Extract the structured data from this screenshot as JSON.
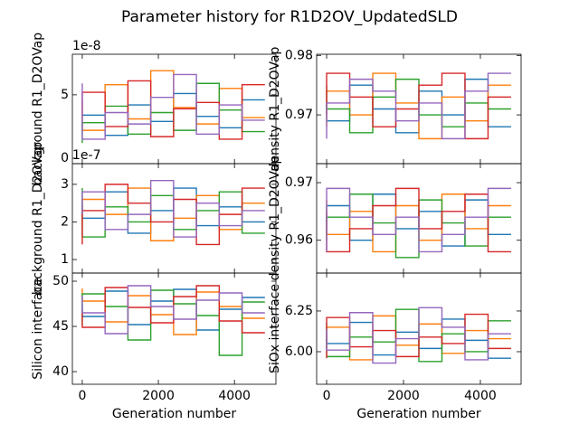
{
  "title": "Parameter history for R1D2OV_UpdatedSLD",
  "chart_data": [
    {
      "type": "line",
      "ylabel": "background R1_D2OVap",
      "offset_text": "1e-8",
      "xticklabels": false,
      "x": [
        0,
        600,
        1200,
        1800,
        2400,
        3000,
        3600,
        4200,
        4800
      ],
      "xlim": [
        -260,
        5090
      ],
      "xticks": [
        0,
        2000,
        4000
      ],
      "ylim": [
        -0.43,
        8.2
      ],
      "yticks": [
        0,
        5
      ],
      "series": [
        {
          "color": "#1f77b4",
          "values": [
            2.1,
            3.4,
            1.8,
            4.2,
            2.9,
            5.1,
            3.3,
            2.4,
            4.6
          ]
        },
        {
          "color": "#ff7f0e",
          "values": [
            4.5,
            2.2,
            5.8,
            3.1,
            6.9,
            4.0,
            2.7,
            5.5,
            3.2
          ]
        },
        {
          "color": "#2ca02c",
          "values": [
            1.2,
            2.8,
            4.1,
            1.9,
            3.6,
            2.2,
            5.9,
            3.8,
            2.1
          ]
        },
        {
          "color": "#d62728",
          "values": [
            3.3,
            5.2,
            2.5,
            6.1,
            1.7,
            3.9,
            4.4,
            1.5,
            5.8
          ]
        },
        {
          "color": "#9467bd",
          "values": [
            5.9,
            1.5,
            3.6,
            2.7,
            4.8,
            6.6,
            1.9,
            4.2,
            3.0
          ]
        }
      ]
    },
    {
      "type": "line",
      "ylabel": "density R1_D2OVap",
      "xticklabels": false,
      "x": [
        0,
        600,
        1200,
        1800,
        2400,
        3000,
        3600,
        4200,
        4800
      ],
      "xlim": [
        -260,
        5060
      ],
      "xticks": [
        0,
        2000,
        4000
      ],
      "ylim": [
        0.9618,
        0.9802
      ],
      "yticks": [
        0.97,
        0.98
      ],
      "series": [
        {
          "color": "#1f77b4",
          "values": [
            0.972,
            0.969,
            0.975,
            0.971,
            0.967,
            0.974,
            0.97,
            0.976,
            0.968
          ]
        },
        {
          "color": "#ff7f0e",
          "values": [
            0.968,
            0.974,
            0.97,
            0.977,
            0.972,
            0.966,
            0.973,
            0.969,
            0.975
          ]
        },
        {
          "color": "#2ca02c",
          "values": [
            0.975,
            0.971,
            0.967,
            0.973,
            0.976,
            0.97,
            0.968,
            0.972,
            0.971
          ]
        },
        {
          "color": "#d62728",
          "values": [
            0.97,
            0.977,
            0.973,
            0.968,
            0.971,
            0.975,
            0.977,
            0.966,
            0.973
          ]
        },
        {
          "color": "#9467bd",
          "values": [
            0.966,
            0.972,
            0.976,
            0.974,
            0.969,
            0.972,
            0.966,
            0.974,
            0.977
          ]
        }
      ]
    },
    {
      "type": "line",
      "ylabel": "background R1_D2OVap",
      "offset_text": "1e-7",
      "xticklabels": false,
      "x": [
        0,
        600,
        1200,
        1800,
        2400,
        3000,
        3600,
        4200,
        4800
      ],
      "xlim": [
        -260,
        5090
      ],
      "xticks": [
        0,
        2000,
        4000
      ],
      "ylim": [
        0.64,
        3.55
      ],
      "yticks": [
        1,
        2,
        3
      ],
      "series": [
        {
          "color": "#1f77b4",
          "values": [
            2.5,
            2.1,
            2.8,
            1.7,
            2.3,
            2.9,
            1.9,
            2.4,
            2.0
          ]
        },
        {
          "color": "#ff7f0e",
          "values": [
            1.9,
            2.6,
            2.2,
            2.9,
            1.5,
            2.1,
            2.7,
            1.8,
            2.5
          ]
        },
        {
          "color": "#2ca02c",
          "values": [
            2.9,
            1.6,
            2.4,
            2.0,
            2.7,
            1.8,
            2.3,
            2.8,
            1.7
          ]
        },
        {
          "color": "#d62728",
          "values": [
            1.4,
            2.3,
            3.0,
            2.5,
            2.0,
            2.6,
            1.4,
            2.2,
            2.9
          ]
        },
        {
          "color": "#9467bd",
          "values": [
            2.2,
            2.8,
            1.8,
            2.2,
            3.1,
            1.6,
            2.5,
            1.9,
            2.3
          ]
        }
      ]
    },
    {
      "type": "line",
      "ylabel": "density R1_D2OVap",
      "xticklabels": false,
      "x": [
        0,
        600,
        1200,
        1800,
        2400,
        3000,
        3600,
        4200,
        4800
      ],
      "xlim": [
        -260,
        5060
      ],
      "xticks": [
        0,
        2000,
        4000
      ],
      "ylim": [
        0.9543,
        0.9733
      ],
      "yticks": [
        0.96,
        0.97
      ],
      "series": [
        {
          "color": "#1f77b4",
          "values": [
            0.963,
            0.966,
            0.96,
            0.968,
            0.962,
            0.965,
            0.959,
            0.967,
            0.961
          ]
        },
        {
          "color": "#ff7f0e",
          "values": [
            0.967,
            0.961,
            0.965,
            0.958,
            0.966,
            0.96,
            0.968,
            0.962,
            0.966
          ]
        },
        {
          "color": "#2ca02c",
          "values": [
            0.96,
            0.964,
            0.968,
            0.963,
            0.957,
            0.967,
            0.963,
            0.959,
            0.964
          ]
        },
        {
          "color": "#d62728",
          "values": [
            0.965,
            0.958,
            0.962,
            0.966,
            0.969,
            0.962,
            0.965,
            0.968,
            0.958
          ]
        },
        {
          "color": "#9467bd",
          "values": [
            0.958,
            0.969,
            0.964,
            0.961,
            0.964,
            0.958,
            0.961,
            0.964,
            0.969
          ]
        }
      ]
    },
    {
      "type": "line",
      "ylabel": "Silicon interface",
      "xlabel": "Generation number",
      "xticklabels": true,
      "x": [
        0,
        600,
        1200,
        1800,
        2400,
        3000,
        3600,
        4200,
        4800
      ],
      "xlim": [
        -260,
        5090
      ],
      "xticks": [
        0,
        2000,
        4000
      ],
      "ylim": [
        38.6,
        50.9
      ],
      "yticks": [
        40,
        45,
        50
      ],
      "series": [
        {
          "color": "#1f77b4",
          "values": [
            47.5,
            46.1,
            48.9,
            45.2,
            47.8,
            49.1,
            44.6,
            46.9,
            48.2
          ]
        },
        {
          "color": "#ff7f0e",
          "values": [
            49.2,
            47.8,
            45.5,
            48.4,
            46.3,
            44.1,
            48.8,
            47.2,
            45.9
          ]
        },
        {
          "color": "#2ca02c",
          "values": [
            45.1,
            48.6,
            47.2,
            43.5,
            49.0,
            47.5,
            46.2,
            41.8,
            47.7
          ]
        },
        {
          "color": "#d62728",
          "values": [
            46.8,
            44.9,
            49.3,
            47.1,
            45.4,
            48.3,
            49.5,
            45.6,
            44.3
          ]
        },
        {
          "color": "#9467bd",
          "values": [
            48.4,
            46.5,
            44.2,
            49.5,
            47.2,
            45.8,
            47.9,
            48.7,
            46.5
          ]
        }
      ]
    },
    {
      "type": "line",
      "ylabel": "SiOx interface",
      "xlabel": "Generation number",
      "xticklabels": true,
      "x": [
        0,
        600,
        1200,
        1800,
        2400,
        3000,
        3600,
        4200,
        4800
      ],
      "xlim": [
        -260,
        5060
      ],
      "xticks": [
        0,
        2000,
        4000
      ],
      "ylim": [
        5.8,
        6.483
      ],
      "yticks": [
        {
          "value": 6,
          "label": "6.00"
        },
        {
          "value": 6.25,
          "label": "6.25"
        }
      ],
      "series": [
        {
          "color": "#1f77b4",
          "values": [
            6.1,
            6.05,
            6.18,
            5.98,
            6.12,
            6.02,
            6.2,
            6.07,
            5.96
          ]
        },
        {
          "color": "#ff7f0e",
          "values": [
            6.02,
            6.15,
            5.95,
            6.22,
            6.04,
            6.17,
            5.99,
            6.13,
            6.08
          ]
        },
        {
          "color": "#2ca02c",
          "values": [
            6.18,
            5.97,
            6.09,
            6.06,
            6.26,
            5.94,
            6.11,
            6.0,
            6.19
          ]
        },
        {
          "color": "#d62728",
          "values": [
            5.96,
            6.21,
            6.03,
            6.13,
            5.97,
            6.09,
            6.05,
            6.23,
            6.02
          ]
        },
        {
          "color": "#9467bd",
          "values": [
            6.14,
            6.01,
            6.24,
            5.93,
            6.08,
            6.27,
            6.15,
            5.95,
            6.11
          ]
        }
      ]
    }
  ]
}
